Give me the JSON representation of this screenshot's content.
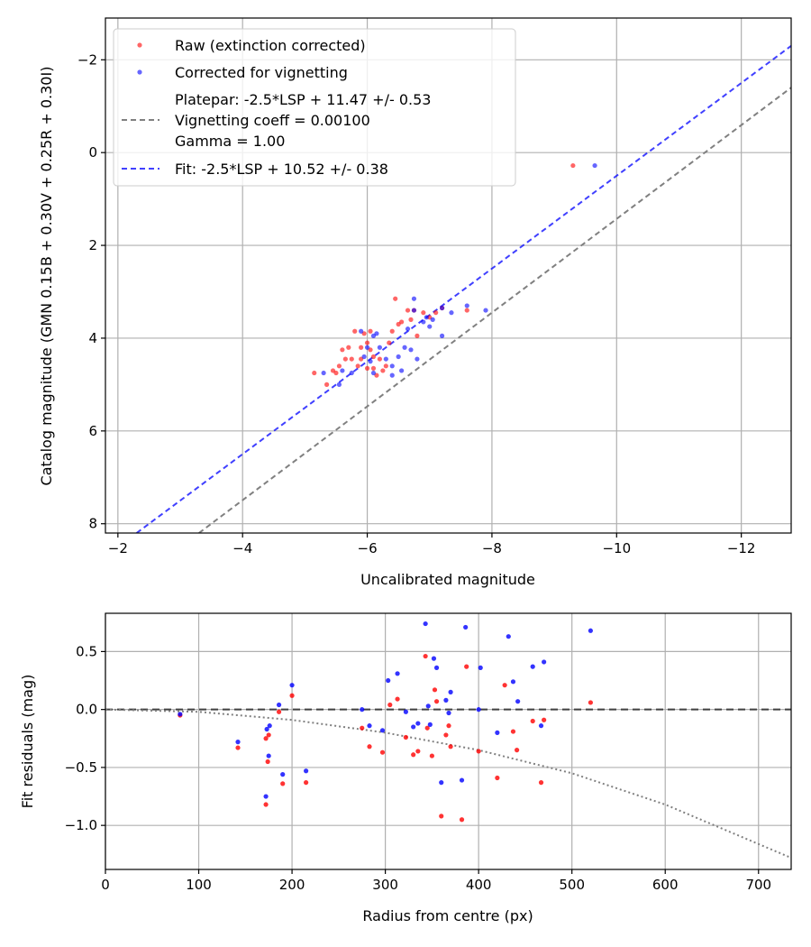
{
  "chart_data": [
    {
      "type": "scatter",
      "xlabel": "Uncalibrated magnitude",
      "ylabel": "Catalog magnitude (GMN 0.15B + 0.30V + 0.25R + 0.30I)",
      "xlim": [
        -1.8,
        -12.8
      ],
      "ylim": [
        8.2,
        -2.9
      ],
      "xticks": [
        -2,
        -4,
        -6,
        -8,
        -10,
        -12
      ],
      "xtick_labels": [
        "−2",
        "−4",
        "−6",
        "−8",
        "−10",
        "−12"
      ],
      "yticks": [
        -2,
        0,
        2,
        4,
        6,
        8
      ],
      "ytick_labels": [
        "−2",
        "0",
        "2",
        "4",
        "6",
        "8"
      ],
      "grid": true,
      "legend_position": "top-left",
      "legend": [
        {
          "key": "raw",
          "label": "Raw (extinction corrected)",
          "kind": "marker",
          "color": "#ff0000"
        },
        {
          "key": "vig",
          "label": "Corrected for vignetting",
          "kind": "marker",
          "color": "#0000ff"
        },
        {
          "key": "platepar",
          "label": "Platepar: -2.5*LSP + 11.47 +/- 0.53",
          "kind": "line",
          "color": "#808080"
        },
        {
          "key": "vig_coeff",
          "label": "Vignetting coeff = 0.00100",
          "kind": "text"
        },
        {
          "key": "gamma",
          "label": "Gamma = 1.00",
          "kind": "text"
        },
        {
          "key": "fit",
          "label": "Fit: -2.5*LSP + 10.52 +/- 0.38",
          "kind": "line",
          "color": "#0000ff"
        }
      ],
      "lines": [
        {
          "name": "Platepar",
          "x": [
            -3.3,
            -12.8
          ],
          "y": [
            8.2,
            -1.4
          ],
          "color": "#808080",
          "dash": "6,4"
        },
        {
          "name": "Fit",
          "x": [
            -2.3,
            -12.8
          ],
          "y": [
            8.2,
            -2.3
          ],
          "color": "#0000ff",
          "dash": "6,4"
        }
      ],
      "series": [
        {
          "name": "Raw (extinction corrected)",
          "color": "#ff0000",
          "x": [
            -5.15,
            -5.35,
            -5.45,
            -5.5,
            -5.55,
            -5.6,
            -5.65,
            -5.7,
            -5.75,
            -5.8,
            -5.85,
            -5.9,
            -5.9,
            -5.95,
            -6.0,
            -6.0,
            -6.05,
            -6.05,
            -6.1,
            -6.1,
            -6.15,
            -6.2,
            -6.25,
            -6.3,
            -6.35,
            -6.4,
            -6.45,
            -6.5,
            -6.55,
            -6.65,
            -6.7,
            -6.75,
            -6.8,
            -6.9,
            -7.0,
            -7.1,
            -7.2,
            -7.6,
            -9.3
          ],
          "y": [
            4.75,
            5.0,
            4.7,
            4.75,
            4.6,
            4.25,
            4.45,
            4.2,
            4.45,
            3.85,
            4.6,
            4.45,
            4.2,
            3.9,
            4.1,
            4.65,
            4.25,
            3.85,
            4.65,
            4.4,
            4.8,
            4.45,
            4.7,
            4.6,
            4.1,
            3.85,
            3.15,
            3.7,
            3.65,
            3.4,
            3.6,
            3.4,
            3.95,
            3.45,
            3.55,
            3.45,
            3.35,
            3.4,
            0.28
          ]
        },
        {
          "name": "Corrected for vignetting",
          "color": "#0000ff",
          "x": [
            -5.3,
            -5.55,
            -5.6,
            -5.75,
            -5.9,
            -5.95,
            -6.0,
            -6.05,
            -6.1,
            -6.1,
            -6.15,
            -6.2,
            -6.3,
            -6.4,
            -6.4,
            -6.5,
            -6.55,
            -6.6,
            -6.65,
            -6.7,
            -6.75,
            -6.75,
            -6.8,
            -6.9,
            -6.95,
            -7.0,
            -7.05,
            -7.2,
            -7.2,
            -7.35,
            -7.6,
            -7.9,
            -9.65
          ],
          "y": [
            4.75,
            5.0,
            4.7,
            4.75,
            3.85,
            4.4,
            4.2,
            4.5,
            3.95,
            4.75,
            3.9,
            4.2,
            4.45,
            4.6,
            4.8,
            4.4,
            4.7,
            4.2,
            3.8,
            4.25,
            3.15,
            3.4,
            4.45,
            3.65,
            3.55,
            3.75,
            3.6,
            3.95,
            3.35,
            3.45,
            3.3,
            3.4,
            0.28
          ]
        }
      ]
    },
    {
      "type": "scatter",
      "xlabel": "Radius from centre (px)",
      "ylabel": "Fit residuals (mag)",
      "xlim": [
        0,
        735
      ],
      "ylim": [
        -1.38,
        0.83
      ],
      "xticks": [
        0,
        100,
        200,
        300,
        400,
        500,
        600,
        700
      ],
      "xtick_labels": [
        "0",
        "100",
        "200",
        "300",
        "400",
        "500",
        "600",
        "700"
      ],
      "yticks": [
        0.5,
        0.0,
        -0.5,
        -1.0
      ],
      "ytick_labels": [
        "0.5",
        "0.0",
        "−0.5",
        "−1.0"
      ],
      "grid": true,
      "reference_line": {
        "y": 0.0,
        "color": "#404040",
        "dash": "8,5"
      },
      "vignetting_curve": {
        "x": [
          0,
          100,
          200,
          300,
          400,
          500,
          600,
          735
        ],
        "y": [
          0.0,
          -0.02,
          -0.09,
          -0.2,
          -0.35,
          -0.55,
          -0.82,
          -1.28
        ],
        "color": "#808080",
        "dash": "2,3"
      },
      "series": [
        {
          "name": "Raw (extinction corrected)",
          "color": "#ff0000",
          "x": [
            80,
            142,
            172,
            172,
            174,
            175,
            186,
            190,
            200,
            215,
            275,
            283,
            297,
            305,
            313,
            322,
            330,
            335,
            343,
            345,
            350,
            353,
            355,
            360,
            365,
            368,
            370,
            382,
            387,
            400,
            420,
            428,
            437,
            441,
            458,
            467,
            470,
            520
          ],
          "y": [
            -0.05,
            -0.33,
            -0.82,
            -0.25,
            -0.45,
            -0.22,
            -0.02,
            -0.64,
            0.12,
            -0.63,
            -0.16,
            -0.32,
            -0.37,
            0.04,
            0.09,
            -0.24,
            -0.39,
            -0.36,
            0.46,
            -0.16,
            -0.4,
            0.17,
            0.07,
            -0.92,
            -0.22,
            -0.14,
            -0.32,
            -0.95,
            0.37,
            -0.36,
            -0.59,
            0.21,
            -0.19,
            -0.35,
            -0.1,
            -0.63,
            -0.09,
            0.06
          ]
        },
        {
          "name": "Corrected for vignetting",
          "color": "#0000ff",
          "x": [
            80,
            142,
            172,
            173,
            175,
            176,
            186,
            190,
            200,
            215,
            275,
            283,
            297,
            303,
            313,
            322,
            330,
            335,
            343,
            346,
            348,
            352,
            355,
            360,
            365,
            368,
            370,
            382,
            386,
            400,
            402,
            420,
            432,
            437,
            442,
            458,
            467,
            470,
            520
          ],
          "y": [
            -0.04,
            -0.28,
            -0.75,
            -0.17,
            -0.4,
            -0.14,
            0.04,
            -0.56,
            0.21,
            -0.53,
            0.0,
            -0.14,
            -0.18,
            0.25,
            0.31,
            -0.02,
            -0.15,
            -0.12,
            0.74,
            0.03,
            -0.13,
            0.44,
            0.36,
            -0.63,
            0.08,
            -0.03,
            0.15,
            -0.61,
            0.71,
            0.0,
            0.36,
            -0.2,
            0.63,
            0.24,
            0.07,
            0.37,
            -0.14,
            0.41,
            0.68
          ]
        }
      ]
    }
  ]
}
